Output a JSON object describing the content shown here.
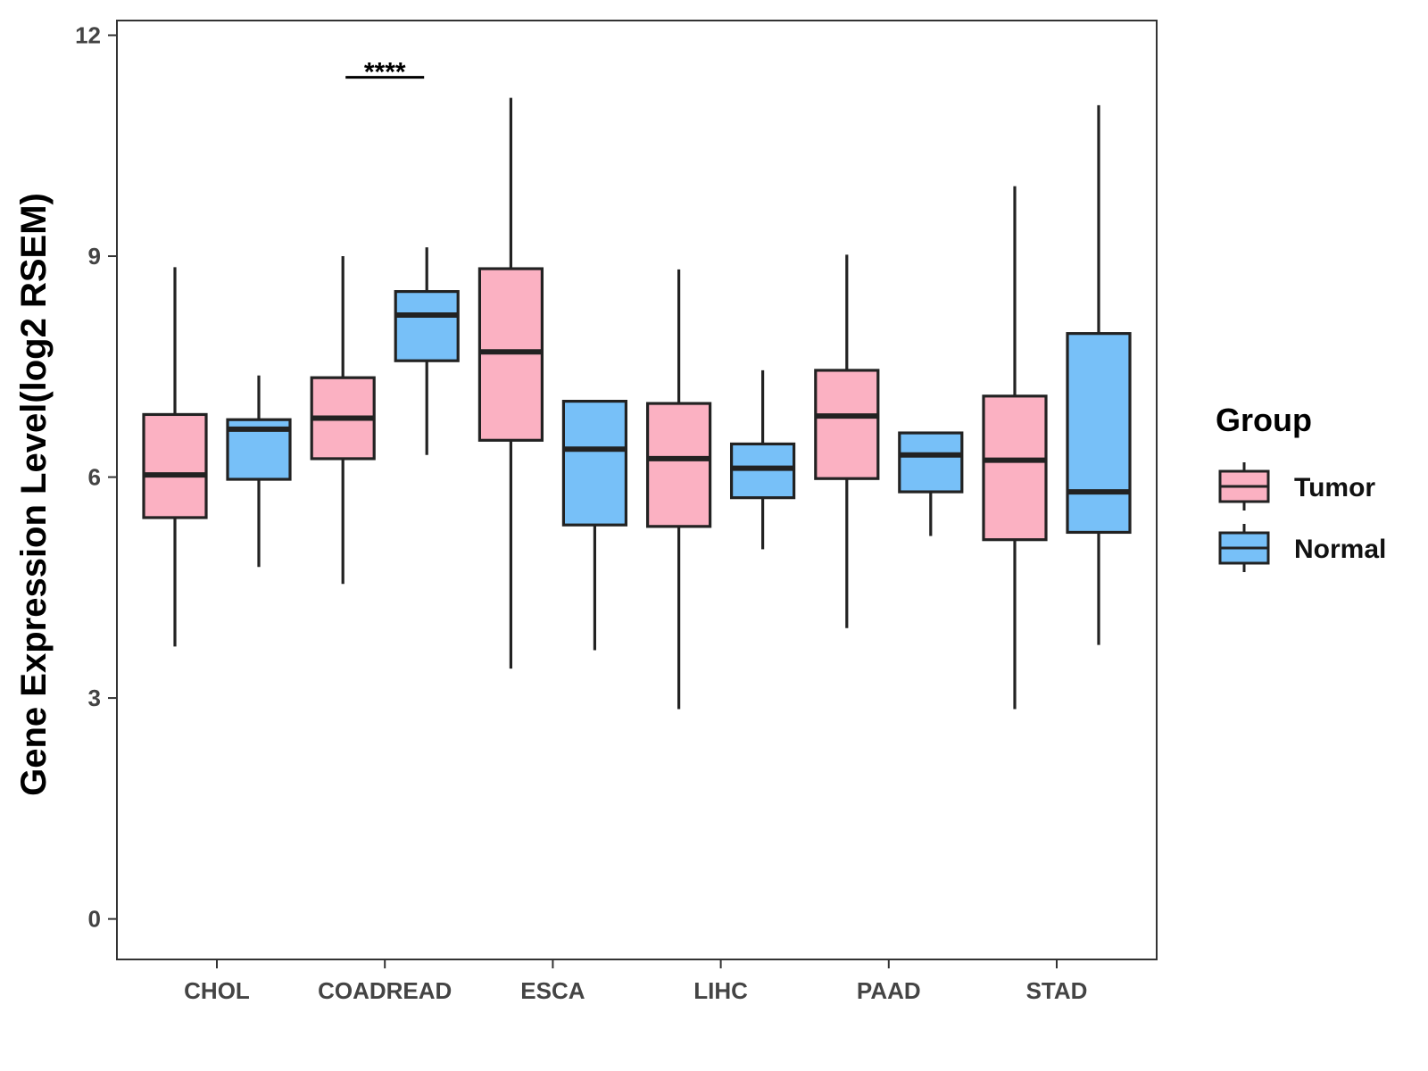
{
  "chart_data": {
    "type": "boxplot",
    "title": "",
    "xlabel": "",
    "ylabel": "Gene Expression Level(log2 RSEM)",
    "ylim": [
      -0.55,
      12.2
    ],
    "yticks": [
      0,
      3,
      6,
      9,
      12
    ],
    "categories": [
      "CHOL",
      "COADREAD",
      "ESCA",
      "LIHC",
      "PAAD",
      "STAD"
    ],
    "legend": {
      "title": "Group",
      "placement": "right",
      "entries": [
        "Tumor",
        "Normal"
      ]
    },
    "colors": {
      "Tumor": "#fbb1c2",
      "Normal": "#77c0f8",
      "outline": "#222222"
    },
    "series": [
      {
        "name": "Tumor",
        "boxes": [
          {
            "category": "CHOL",
            "whisker_low": 3.7,
            "q1": 5.45,
            "median": 6.03,
            "q3": 6.85,
            "whisker_high": 8.85
          },
          {
            "category": "COADREAD",
            "whisker_low": 4.55,
            "q1": 6.25,
            "median": 6.8,
            "q3": 7.35,
            "whisker_high": 9.0
          },
          {
            "category": "ESCA",
            "whisker_low": 3.4,
            "q1": 6.5,
            "median": 7.7,
            "q3": 8.83,
            "whisker_high": 11.15
          },
          {
            "category": "LIHC",
            "whisker_low": 2.85,
            "q1": 5.33,
            "median": 6.25,
            "q3": 7.0,
            "whisker_high": 8.82
          },
          {
            "category": "PAAD",
            "whisker_low": 3.95,
            "q1": 5.98,
            "median": 6.83,
            "q3": 7.45,
            "whisker_high": 9.02
          },
          {
            "category": "STAD",
            "whisker_low": 2.85,
            "q1": 5.15,
            "median": 6.23,
            "q3": 7.1,
            "whisker_high": 9.95
          }
        ]
      },
      {
        "name": "Normal",
        "boxes": [
          {
            "category": "CHOL",
            "whisker_low": 4.78,
            "q1": 5.97,
            "median": 6.65,
            "q3": 6.78,
            "whisker_high": 7.38
          },
          {
            "category": "COADREAD",
            "whisker_low": 6.3,
            "q1": 7.58,
            "median": 8.2,
            "q3": 8.52,
            "whisker_high": 9.12
          },
          {
            "category": "ESCA",
            "whisker_low": 3.65,
            "q1": 5.35,
            "median": 6.38,
            "q3": 7.03,
            "whisker_high": 7.03
          },
          {
            "category": "LIHC",
            "whisker_low": 5.02,
            "q1": 5.72,
            "median": 6.12,
            "q3": 6.45,
            "whisker_high": 7.45
          },
          {
            "category": "PAAD",
            "whisker_low": 5.2,
            "q1": 5.8,
            "median": 6.3,
            "q3": 6.6,
            "whisker_high": 6.6
          },
          {
            "category": "STAD",
            "whisker_low": 3.72,
            "q1": 5.25,
            "median": 5.8,
            "q3": 7.95,
            "whisker_high": 11.05
          }
        ]
      }
    ],
    "annotations": [
      {
        "category": "COADREAD",
        "text": "****",
        "y": 11.55
      }
    ]
  }
}
